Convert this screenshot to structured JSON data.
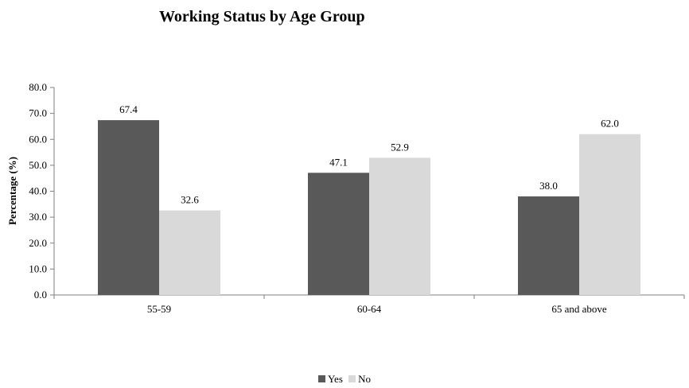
{
  "chart_data": {
    "type": "bar",
    "title": "Working Status by Age Group",
    "ylabel": "Percentage (%)",
    "xlabel": "",
    "categories": [
      "55-59",
      "60-64",
      "65 and above"
    ],
    "series": [
      {
        "name": "Yes",
        "values": [
          67.4,
          47.1,
          38.0
        ],
        "color": "#595959"
      },
      {
        "name": "No",
        "values": [
          32.6,
          52.9,
          62.0
        ],
        "color": "#d9d9d9"
      }
    ],
    "ylim": [
      0,
      80
    ],
    "yticks": [
      "0.0",
      "10.0",
      "20.0",
      "30.0",
      "40.0",
      "50.0",
      "60.0",
      "70.0",
      "80.0"
    ],
    "data_labels": [
      [
        "67.4",
        "47.1",
        "38.0"
      ],
      [
        "32.6",
        "52.9",
        "62.0"
      ]
    ],
    "grid": false,
    "legend_position": "bottom"
  }
}
